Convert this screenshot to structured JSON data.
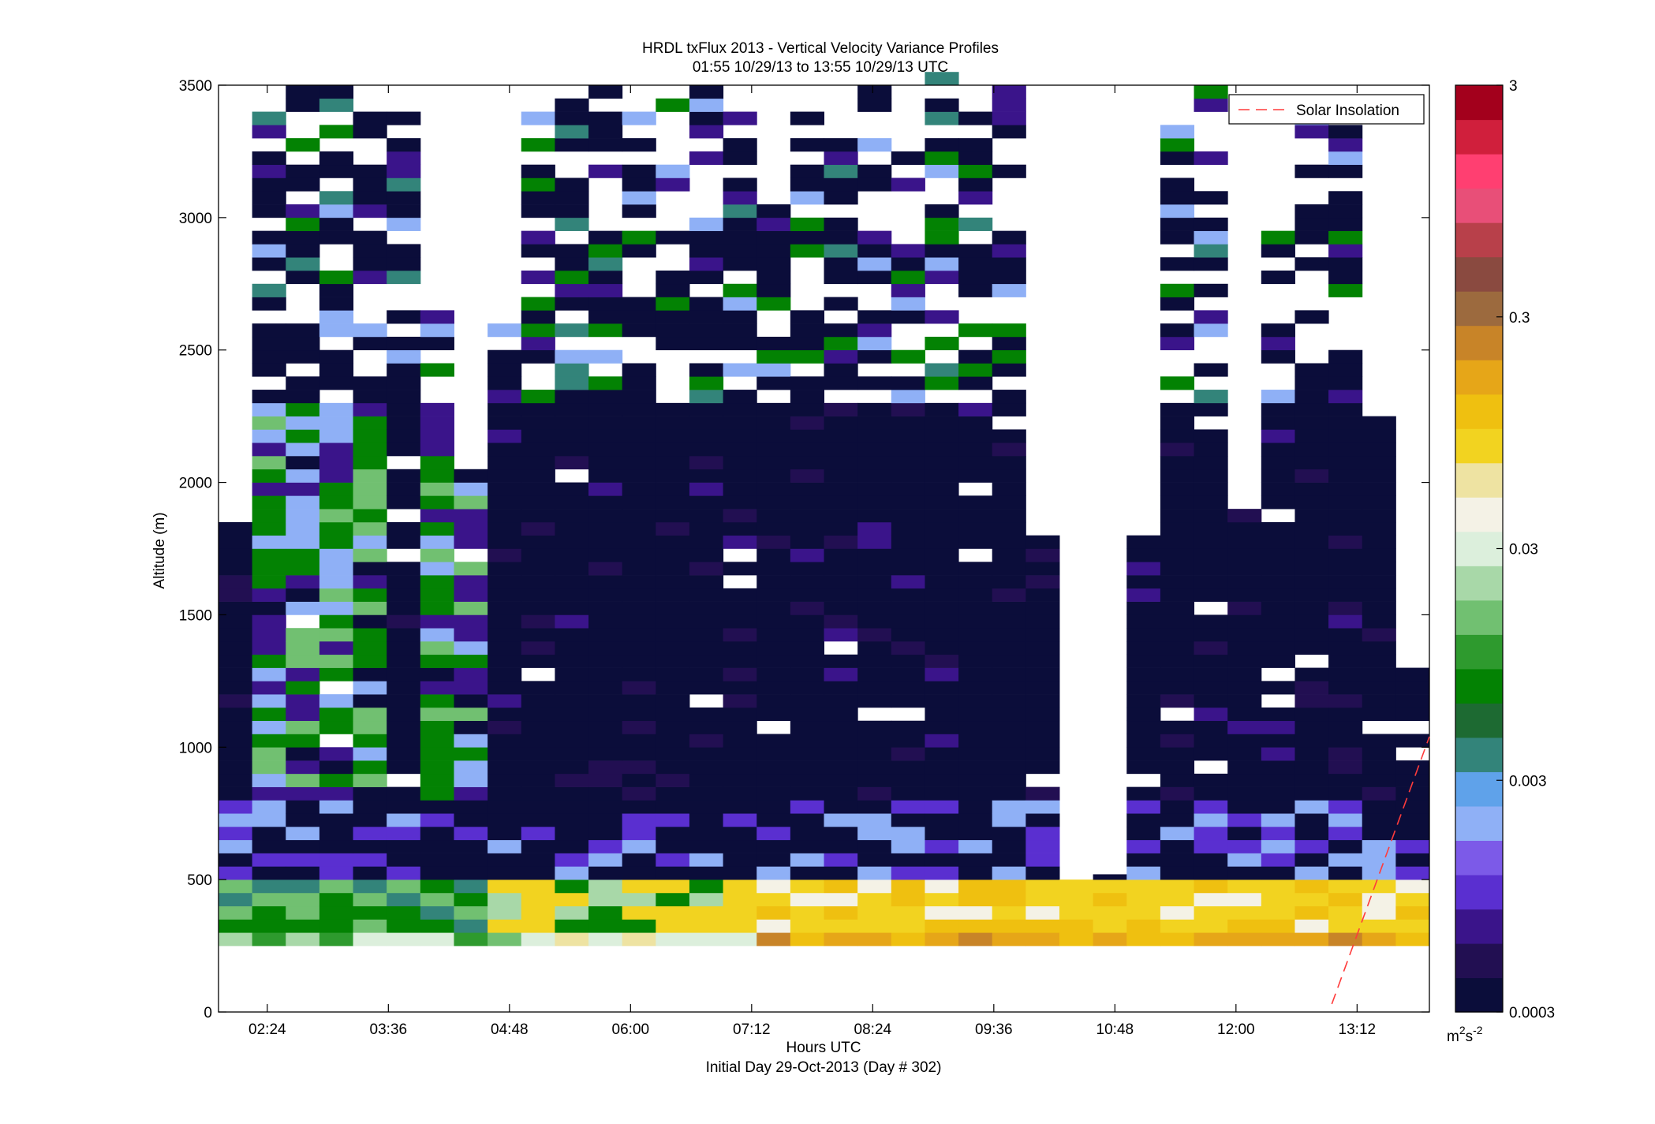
{
  "chart_data": {
    "type": "heatmap",
    "title": "HRDL txFlux 2013 - Vertical Velocity Variance Profiles",
    "subtitle": "01:55 10/29/13 to 13:55 10/29/13  UTC",
    "xlabel": "Hours UTC",
    "xlabel2": "Initial Day 29-Oct-2013 (Day # 302)",
    "ylabel": "Altitude (m)",
    "x_ticks": [
      "02:24",
      "03:36",
      "04:48",
      "06:00",
      "07:12",
      "08:24",
      "09:36",
      "10:48",
      "12:00",
      "13:12"
    ],
    "x_tick_hours": [
      2.4,
      3.6,
      4.8,
      6.0,
      7.2,
      8.4,
      9.6,
      10.8,
      12.0,
      13.2
    ],
    "xlim_hours": [
      1.9167,
      13.9167
    ],
    "y_ticks": [
      "0",
      "500",
      "1000",
      "1500",
      "2000",
      "2500",
      "3000",
      "3500"
    ],
    "ylim": [
      0,
      3500
    ],
    "colorbar": {
      "scale": "log",
      "min": 0.0003,
      "max": 3,
      "ticks": [
        "3",
        "0.3",
        "0.03",
        "0.003",
        "0.0003"
      ],
      "tick_values": [
        3,
        0.3,
        0.03,
        0.003,
        0.0003
      ],
      "units_base": "m",
      "units_exp1": "2",
      "units_mid": "s",
      "units_exp2": "-2"
    },
    "legend": {
      "label": "Solar Insolation",
      "placement": "top-right"
    },
    "solar_insolation_line": {
      "x_hours": [
        12.95,
        13.9167
      ],
      "y": [
        30,
        1040
      ]
    },
    "profile_tops_m": [
      1850,
      3400,
      3500,
      3500,
      3400,
      3500,
      2750,
      2100,
      2600,
      3400,
      3450,
      3500,
      3400,
      3450,
      3500,
      3450,
      3050,
      3400,
      3300,
      3500,
      3350,
      3550,
      3400,
      3500,
      1800,
      500,
      520,
      1800,
      3500,
      3500,
      1900,
      2950,
      3400,
      3380,
      2250,
      1350
    ],
    "colors": {
      "scale": [
        "#0b0d3a",
        "#220f52",
        "#3a148a",
        "#5a2fd0",
        "#7c5ae8",
        "#8fb0f6",
        "#5fa2ea",
        "#33847a",
        "#1d6a32",
        "#038203",
        "#2e9a2e",
        "#71c071",
        "#a8d8a8",
        "#dcefdc",
        "#f4f2e6",
        "#eee3a2",
        "#f2d320",
        "#efc010",
        "#e6a618",
        "#c88428",
        "#9c6a3e",
        "#8a4a40",
        "#b8404a",
        "#e84f78",
        "#ff3f71",
        "#d01f3c",
        "#a3001c"
      ],
      "legend_line": "#ff3b3b"
    }
  }
}
